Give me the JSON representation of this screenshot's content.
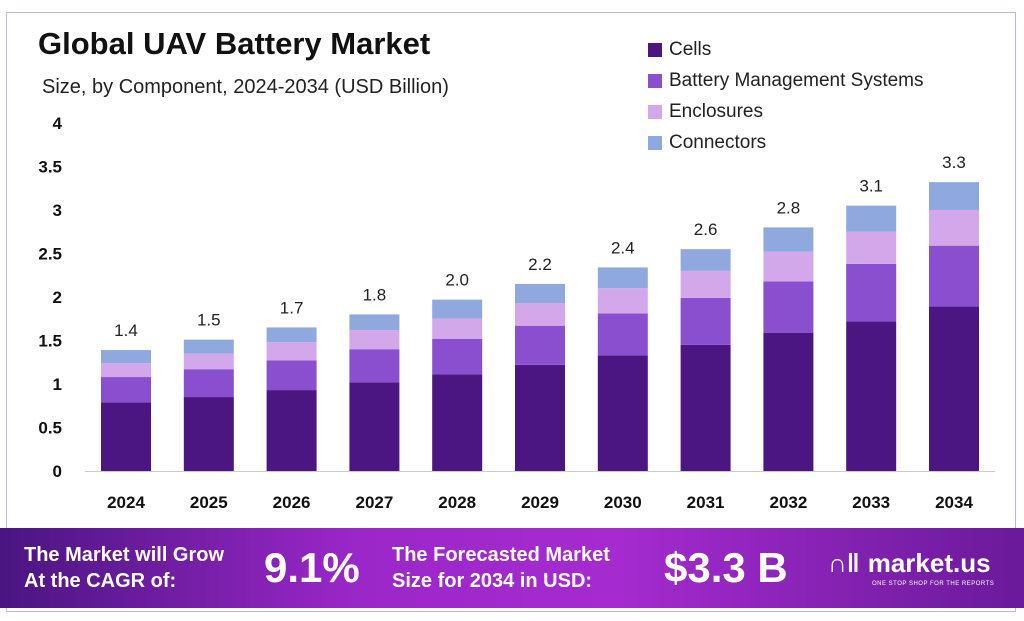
{
  "chart_data": {
    "type": "bar",
    "stacked": true,
    "title": "Global UAV Battery Market",
    "subtitle": "Size, by Component, 2024-2034 (USD Billion)",
    "xlabel": "",
    "ylabel": "",
    "ylim": [
      0,
      4
    ],
    "yticks": [
      "0",
      "0.5",
      "1",
      "1.5",
      "2",
      "2.5",
      "3",
      "3.5",
      "4"
    ],
    "categories": [
      "2024",
      "2025",
      "2026",
      "2027",
      "2028",
      "2029",
      "2030",
      "2031",
      "2032",
      "2033",
      "2034"
    ],
    "totals": [
      "1.4",
      "1.5",
      "1.7",
      "1.8",
      "2.0",
      "2.2",
      "2.4",
      "2.6",
      "2.8",
      "3.1",
      "3.3"
    ],
    "series": [
      {
        "name": "Cells",
        "color": "#4b1681",
        "values": [
          0.79,
          0.85,
          0.93,
          1.02,
          1.11,
          1.22,
          1.33,
          1.45,
          1.59,
          1.72,
          1.89
        ]
      },
      {
        "name": "Battery Management Systems",
        "color": "#8a4fcf",
        "values": [
          0.29,
          0.32,
          0.34,
          0.38,
          0.41,
          0.45,
          0.48,
          0.54,
          0.59,
          0.66,
          0.7
        ]
      },
      {
        "name": "Enclosures",
        "color": "#d3a8ea",
        "values": [
          0.16,
          0.18,
          0.21,
          0.22,
          0.23,
          0.26,
          0.29,
          0.31,
          0.34,
          0.37,
          0.41
        ]
      },
      {
        "name": "Connectors",
        "color": "#8fa9df",
        "values": [
          0.15,
          0.16,
          0.17,
          0.18,
          0.22,
          0.22,
          0.24,
          0.25,
          0.28,
          0.3,
          0.32
        ]
      }
    ],
    "legend_position": "top-right",
    "grid": false
  },
  "banner": {
    "cagr_label_1": "The Market will Grow",
    "cagr_label_2": "At the CAGR of:",
    "cagr_value": "9.1%",
    "forecast_label_1": "The Forecasted Market",
    "forecast_label_2": "Size for 2034 in USD:",
    "forecast_value": "$3.3 B",
    "logo_name": "market.us",
    "logo_tagline": "ONE STOP SHOP FOR THE REPORTS"
  }
}
